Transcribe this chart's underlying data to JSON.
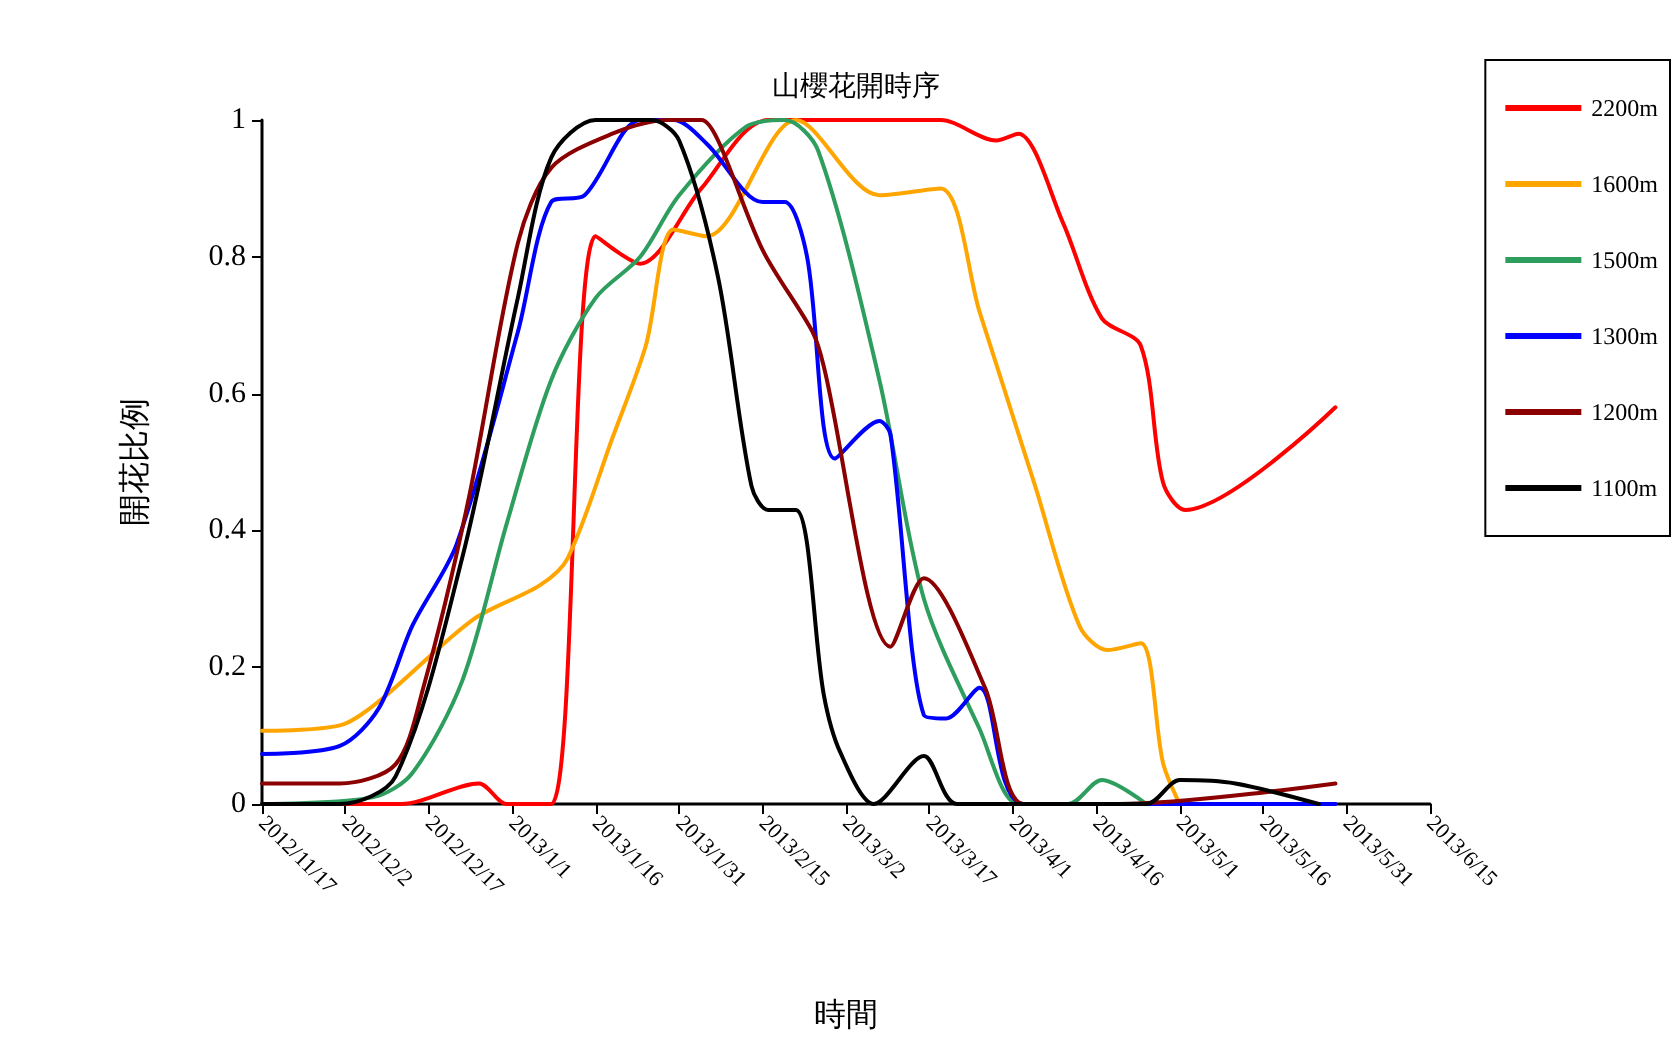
{
  "chart_data": {
    "type": "line",
    "title": "山櫻花開時序",
    "xlabel": "時間",
    "ylabel": "開花比例",
    "xlim": [
      "2012-11-17",
      "2013-06-15"
    ],
    "xticks": [
      {
        "value": "2012-11-17",
        "label": "2012/11/17"
      },
      {
        "value": "2012-12-02",
        "label": "2012/12/2"
      },
      {
        "value": "2012-12-17",
        "label": "2012/12/17"
      },
      {
        "value": "2013-01-01",
        "label": "2013/1/1"
      },
      {
        "value": "2013-01-16",
        "label": "2013/1/16"
      },
      {
        "value": "2013-01-31",
        "label": "2013/1/31"
      },
      {
        "value": "2013-02-15",
        "label": "2013/2/15"
      },
      {
        "value": "2013-03-02",
        "label": "2013/3/2"
      },
      {
        "value": "2013-03-17",
        "label": "2013/3/17"
      },
      {
        "value": "2013-04-01",
        "label": "2013/4/1"
      },
      {
        "value": "2013-04-16",
        "label": "2013/4/16"
      },
      {
        "value": "2013-05-01",
        "label": "2013/5/1"
      },
      {
        "value": "2013-05-16",
        "label": "2013/5/16"
      },
      {
        "value": "2013-05-31",
        "label": "2013/5/31"
      },
      {
        "value": "2013-06-15",
        "label": "2013/6/15"
      }
    ],
    "ylim": [
      0,
      1
    ],
    "yticks": [
      0,
      0.2,
      0.4,
      0.6,
      0.8,
      1
    ],
    "grid": false,
    "legend": "right",
    "marker": "none",
    "line_style": "solid",
    "series": [
      {
        "name": "2200m",
        "color": "#ff0000",
        "x": [
          "2012-11-17",
          "2012-12-12",
          "2012-12-26",
          "2012-12-31",
          "2013-01-08",
          "2013-01-16",
          "2013-01-24",
          "2013-02-04",
          "2013-02-16",
          "2013-03-19",
          "2013-03-29",
          "2013-04-02",
          "2013-04-10",
          "2013-04-17",
          "2013-04-24",
          "2013-04-28",
          "2013-05-02",
          "2013-05-29"
        ],
        "values": [
          0,
          0,
          0.03,
          0,
          0,
          0.83,
          0.79,
          0.9,
          1,
          1,
          0.97,
          0.98,
          0.85,
          0.71,
          0.67,
          0.47,
          0.43,
          0.58
        ]
      },
      {
        "name": "1600m",
        "color": "#ffa500",
        "x": [
          "2012-11-17",
          "2012-12-01",
          "2012-12-08",
          "2012-12-25",
          "2013-01-06",
          "2013-01-11",
          "2013-01-19",
          "2013-01-25",
          "2013-01-30",
          "2013-02-05",
          "2013-02-21",
          "2013-03-08",
          "2013-03-19",
          "2013-03-26",
          "2013-04-05",
          "2013-04-13",
          "2013-04-18",
          "2013-04-24",
          "2013-04-28",
          "2013-05-01"
        ],
        "values": [
          0.107,
          0.115,
          0.15,
          0.27,
          0.32,
          0.36,
          0.535,
          0.67,
          0.84,
          0.83,
          1,
          0.89,
          0.9,
          0.72,
          0.465,
          0.26,
          0.225,
          0.235,
          0.06,
          0
        ]
      },
      {
        "name": "1500m",
        "color": "#2e9e5e",
        "x": [
          "2012-11-17",
          "2012-12-07",
          "2012-12-14",
          "2012-12-23",
          "2012-12-31",
          "2013-01-08",
          "2013-01-16",
          "2013-01-24",
          "2013-01-31",
          "2013-02-12",
          "2013-02-19",
          "2013-02-25",
          "2013-03-08",
          "2013-03-16",
          "2013-03-26",
          "2013-04-02",
          "2013-04-11",
          "2013-04-17",
          "2013-04-25"
        ],
        "values": [
          0,
          0.01,
          0.045,
          0.18,
          0.41,
          0.62,
          0.74,
          0.8,
          0.89,
          0.99,
          1,
          0.955,
          0.62,
          0.3,
          0.11,
          0,
          0,
          0.035,
          0
        ]
      },
      {
        "name": "1300m",
        "color": "#0000ff",
        "x": [
          "2012-11-17",
          "2012-12-01",
          "2012-12-08",
          "2012-12-14",
          "2012-12-22",
          "2013-01-02",
          "2013-01-08",
          "2013-01-14",
          "2013-01-24",
          "2013-01-30",
          "2013-02-05",
          "2013-02-15",
          "2013-02-19",
          "2013-02-23",
          "2013-02-28",
          "2013-03-08",
          "2013-03-10",
          "2013-03-16",
          "2013-03-20",
          "2013-03-26",
          "2013-04-03",
          "2013-05-29"
        ],
        "values": [
          0.073,
          0.085,
          0.14,
          0.26,
          0.38,
          0.69,
          0.88,
          0.89,
          1,
          1,
          0.965,
          0.88,
          0.88,
          0.8,
          0.505,
          0.56,
          0.54,
          0.13,
          0.125,
          0.17,
          0,
          0
        ]
      },
      {
        "name": "1200m",
        "color": "#8b0000",
        "x": [
          "2012-11-17",
          "2012-12-01",
          "2012-12-11",
          "2012-12-16",
          "2012-12-24",
          "2013-01-02",
          "2013-01-08",
          "2013-01-19",
          "2013-01-29",
          "2013-02-04",
          "2013-02-07",
          "2013-02-15",
          "2013-02-24",
          "2013-02-26",
          "2013-03-10",
          "2013-03-16",
          "2013-03-27",
          "2013-04-03",
          "2013-04-20",
          "2013-05-29"
        ],
        "values": [
          0.03,
          0.03,
          0.058,
          0.17,
          0.44,
          0.82,
          0.93,
          0.98,
          1,
          1,
          0.97,
          0.81,
          0.69,
          0.64,
          0.23,
          0.33,
          0.17,
          0,
          0,
          0.03
        ]
      },
      {
        "name": "1100m",
        "color": "#000000",
        "x": [
          "2012-11-17",
          "2012-12-01",
          "2012-12-11",
          "2012-12-23",
          "2013-01-02",
          "2013-01-08",
          "2013-01-16",
          "2013-01-26",
          "2013-01-31",
          "2013-02-07",
          "2013-02-13",
          "2013-02-16",
          "2013-02-21",
          "2013-02-26",
          "2013-03-01",
          "2013-03-07",
          "2013-03-16",
          "2013-03-22",
          "2013-04-25",
          "2013-05-01",
          "2013-05-11",
          "2013-05-26"
        ],
        "values": [
          0,
          0,
          0.04,
          0.36,
          0.74,
          0.945,
          1,
          1,
          0.97,
          0.77,
          0.465,
          0.43,
          0.43,
          0.16,
          0.075,
          0,
          0.07,
          0,
          0,
          0.035,
          0.03,
          0
        ]
      }
    ]
  }
}
